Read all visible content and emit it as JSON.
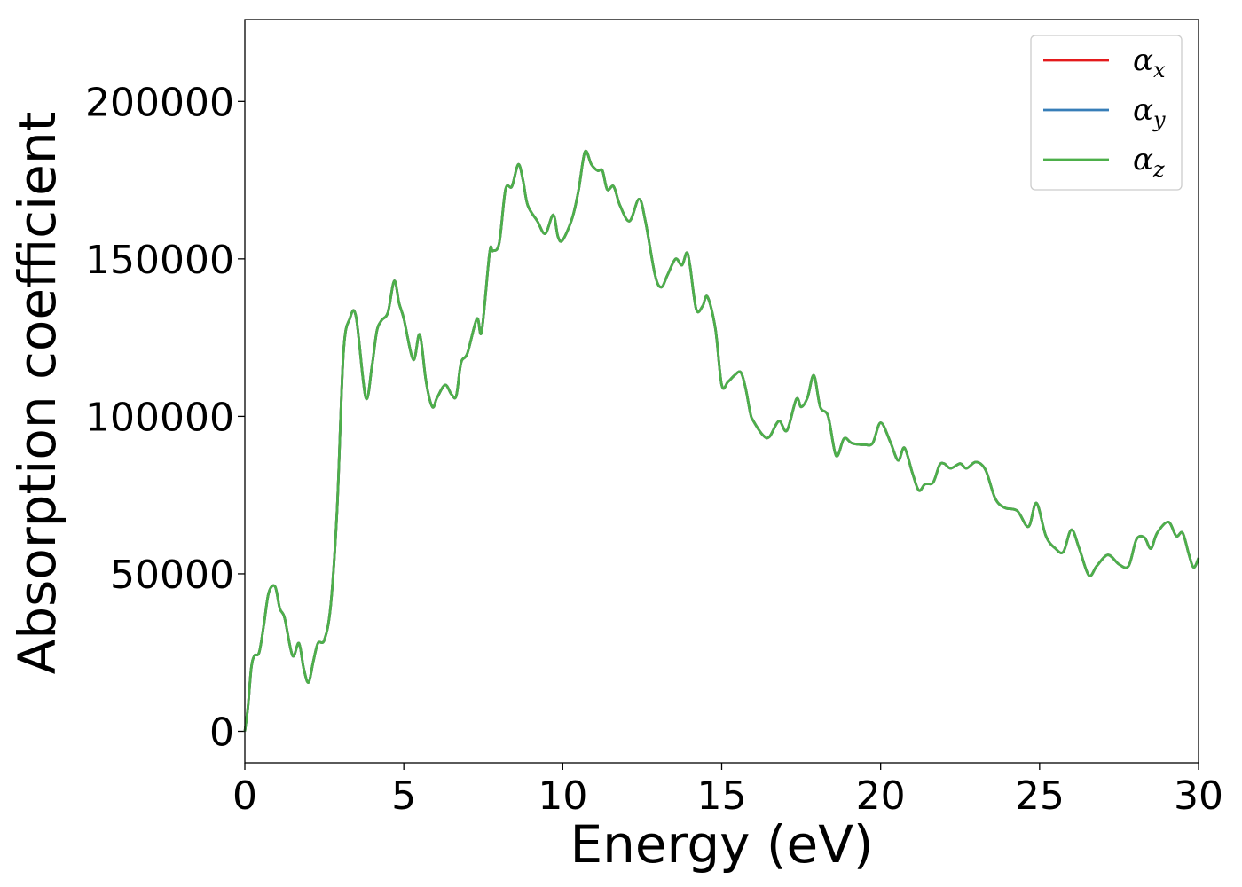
{
  "chart_data": {
    "type": "line",
    "xlabel": "Energy (eV)",
    "ylabel": "Absorption coefficient",
    "xlim": [
      0,
      30
    ],
    "ylim": [
      -10000,
      226000
    ],
    "xticks": [
      0,
      5,
      10,
      15,
      20,
      25,
      30
    ],
    "xtick_labels": [
      "0",
      "5",
      "10",
      "15",
      "20",
      "25",
      "30"
    ],
    "yticks": [
      0,
      50000,
      100000,
      150000,
      200000
    ],
    "ytick_labels": [
      "0",
      "50000",
      "100000",
      "150000",
      "200000"
    ],
    "grid": false,
    "legend_position": "top-right",
    "series": [
      {
        "name": "α",
        "subscript": "x",
        "color": "#e41a1c"
      },
      {
        "name": "α",
        "subscript": "y",
        "color": "#377eb8"
      },
      {
        "name": "α",
        "subscript": "z",
        "color": "#4daf4a"
      }
    ],
    "x": [
      0,
      0.1,
      0.2,
      0.3,
      0.45,
      0.6,
      0.75,
      0.95,
      1.1,
      1.25,
      1.5,
      1.7,
      1.85,
      2.0,
      2.15,
      2.3,
      2.5,
      2.7,
      2.9,
      3.1,
      3.3,
      3.5,
      3.8,
      4.0,
      4.15,
      4.3,
      4.5,
      4.7,
      4.85,
      5.0,
      5.3,
      5.5,
      5.7,
      5.9,
      6.05,
      6.3,
      6.5,
      6.65,
      6.8,
      7.0,
      7.3,
      7.45,
      7.7,
      7.8,
      8.0,
      8.2,
      8.4,
      8.6,
      8.75,
      8.9,
      9.2,
      9.45,
      9.7,
      9.85,
      10.0,
      10.3,
      10.5,
      10.7,
      10.9,
      11.1,
      11.25,
      11.4,
      11.6,
      11.8,
      12.1,
      12.4,
      12.6,
      12.9,
      13.1,
      13.3,
      13.55,
      13.75,
      13.9,
      14.0,
      14.2,
      14.4,
      14.55,
      14.8,
      15.0,
      15.2,
      15.4,
      15.6,
      15.75,
      15.9,
      16.0,
      16.3,
      16.5,
      16.8,
      17.05,
      17.35,
      17.5,
      17.7,
      17.9,
      18.1,
      18.35,
      18.6,
      18.85,
      19.1,
      19.5,
      19.75,
      20.0,
      20.3,
      20.55,
      20.75,
      21.0,
      21.2,
      21.4,
      21.65,
      21.85,
      22.0,
      22.2,
      22.5,
      22.7,
      23.0,
      23.3,
      23.6,
      23.9,
      24.3,
      24.65,
      24.9,
      25.2,
      25.5,
      25.75,
      26.0,
      26.25,
      26.55,
      26.8,
      27.15,
      27.5,
      27.8,
      28.05,
      28.3,
      28.5,
      28.7,
      29.05,
      29.3,
      29.5,
      29.7,
      29.85,
      30.0
    ],
    "values": [
      0,
      8000,
      20000,
      24000,
      25000,
      34000,
      44000,
      46000,
      39000,
      36000,
      24000,
      28000,
      20000,
      15500,
      22000,
      28000,
      29000,
      40000,
      70000,
      120000,
      131000,
      131500,
      106000,
      116000,
      127000,
      130500,
      133000,
      143000,
      136000,
      131000,
      118000,
      126000,
      111000,
      103000,
      106000,
      110000,
      107000,
      106500,
      117000,
      120000,
      131000,
      127000,
      152000,
      152500,
      155000,
      172000,
      173000,
      180000,
      175000,
      167000,
      162000,
      158000,
      164000,
      157000,
      156000,
      163000,
      172000,
      184000,
      180000,
      178000,
      178000,
      172000,
      173000,
      167000,
      162000,
      169000,
      162000,
      145000,
      141000,
      145000,
      150000,
      148000,
      152000,
      148000,
      134000,
      135000,
      138000,
      128000,
      110000,
      111000,
      113000,
      114000,
      109000,
      101000,
      98500,
      94000,
      93500,
      98500,
      95500,
      105500,
      103000,
      106000,
      113000,
      103000,
      100000,
      87500,
      93000,
      91500,
      91000,
      91500,
      98000,
      92000,
      86000,
      90000,
      82000,
      76500,
      78500,
      79000,
      84500,
      85000,
      83500,
      85000,
      83500,
      85500,
      83000,
      74000,
      71000,
      70000,
      65000,
      72500,
      62000,
      58000,
      57000,
      64000,
      58000,
      49500,
      52500,
      56000,
      53000,
      52500,
      61000,
      61500,
      58000,
      63000,
      66500,
      62000,
      63000,
      56000,
      52000,
      55000
    ]
  }
}
